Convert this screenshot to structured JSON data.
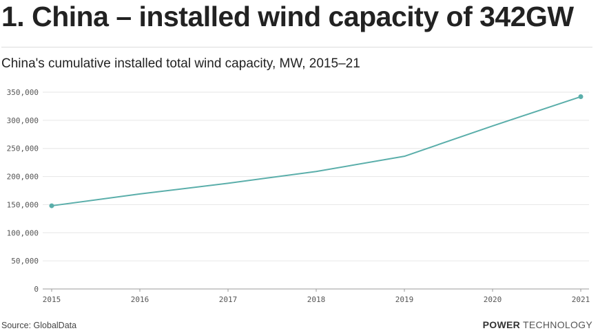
{
  "headline": "1. China – installed wind capacity of 342GW",
  "footer": {
    "source": "Source: GlobalData",
    "brand_bold": "POWER",
    "brand_light": "TECHNOLOGY"
  },
  "colors": {
    "line": "#5aaeaa",
    "grid": "#e6e6e6",
    "axis": "#999999"
  },
  "chart_data": {
    "type": "line",
    "title": "China's cumulative installed total wind capacity, MW, 2015–21",
    "xlabel": "",
    "ylabel": "",
    "x": [
      "2015",
      "2016",
      "2017",
      "2018",
      "2019",
      "2020",
      "2021"
    ],
    "series": [
      {
        "name": "Installed wind capacity (MW)",
        "values": [
          148000,
          169000,
          188000,
          209000,
          236000,
          290000,
          342000
        ]
      }
    ],
    "ylim": [
      0,
      350000
    ],
    "yticks": [
      0,
      50000,
      100000,
      150000,
      200000,
      250000,
      300000,
      350000
    ],
    "ytick_labels": [
      "0",
      "50,000",
      "100,000",
      "150,000",
      "200,000",
      "250,000",
      "300,000",
      "350,000"
    ],
    "endpoint_markers": true,
    "grid": true
  }
}
